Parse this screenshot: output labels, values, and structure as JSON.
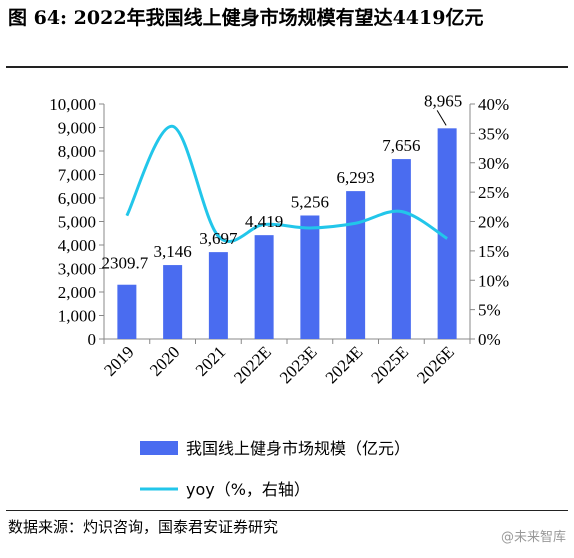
{
  "figure": {
    "title": "图  64: 2022年我国线上健身市场规模有望达4419亿元",
    "source": "数据来源：灼识咨询，国泰君安证券研究",
    "watermark": "@未来智库"
  },
  "chart_data": {
    "type": "bar",
    "categories": [
      "2019",
      "2020",
      "2021",
      "2022E",
      "2023E",
      "2024E",
      "2025E",
      "2026E"
    ],
    "series": [
      {
        "name": "我国线上健身市场规模（亿元）",
        "type": "bar",
        "axis": "left",
        "values": [
          2309.7,
          3146,
          3697,
          4419,
          5256,
          6293,
          7656,
          8965
        ],
        "labels": [
          "2309.7",
          "3,146",
          "3,697",
          "4,419",
          "5,256",
          "6,293",
          "7,656",
          "8,965"
        ],
        "color": "#4a6cf0"
      },
      {
        "name": "yoy（%，右轴）",
        "type": "line",
        "axis": "right",
        "values": [
          21,
          36.2,
          17.5,
          19.5,
          18.9,
          19.7,
          21.7,
          17.1
        ],
        "color": "#22c6ea"
      }
    ],
    "y_left": {
      "min": 0,
      "max": 10000,
      "ticks": [
        "0",
        "1,000",
        "2,000",
        "3,000",
        "4,000",
        "5,000",
        "6,000",
        "7,000",
        "8,000",
        "9,000",
        "10,000"
      ]
    },
    "y_right": {
      "min": 0,
      "max": 40,
      "ticks": [
        "0%",
        "5%",
        "10%",
        "15%",
        "20%",
        "25%",
        "30%",
        "35%",
        "40%"
      ]
    },
    "grid": false,
    "legend_position": "bottom"
  }
}
